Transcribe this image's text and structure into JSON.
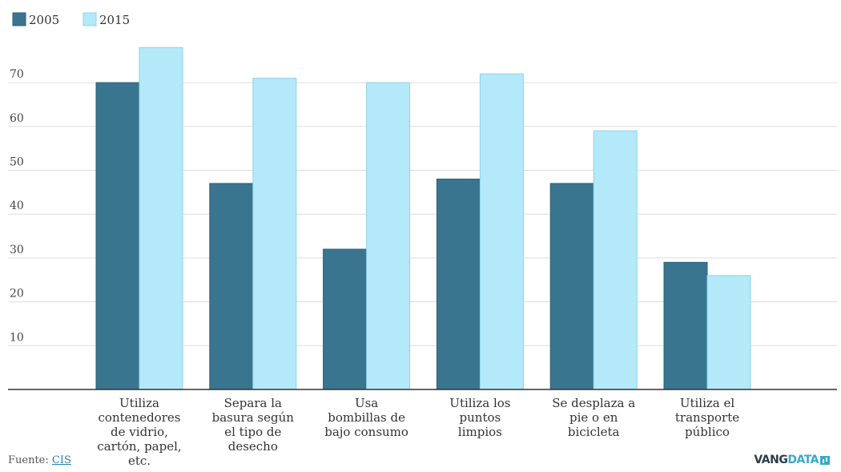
{
  "chart_data": {
    "type": "bar",
    "title": "",
    "xlabel": "",
    "ylabel": "",
    "categories": [
      [
        "Utiliza",
        "contenedores",
        "de vidrio,",
        "cartón, papel,",
        "etc."
      ],
      [
        "Separa la",
        "basura según",
        "el tipo de",
        "desecho"
      ],
      [
        "Usa",
        "bombillas de",
        "bajo consumo"
      ],
      [
        "Utiliza los",
        "puntos",
        "limpios"
      ],
      [
        "Se desplaza a",
        "pie o en",
        "bicicleta"
      ],
      [
        "Utiliza el",
        "transporte",
        "público"
      ]
    ],
    "series": [
      {
        "name": "2005",
        "color": "#3a7590",
        "values": [
          70,
          47,
          32,
          48,
          47,
          29
        ]
      },
      {
        "name": "2015",
        "color": "#b3e9f9",
        "values": [
          78,
          71,
          70,
          72,
          59,
          26
        ]
      }
    ],
    "yticks": [
      10,
      20,
      30,
      40,
      50,
      60,
      70
    ],
    "ylim": [
      0,
      80
    ],
    "grid": true,
    "legend_position": "top-left"
  },
  "source": {
    "label": "Fuente:",
    "link_text": "CIS"
  },
  "brand": {
    "main": "VANG",
    "accent": "DATA"
  }
}
